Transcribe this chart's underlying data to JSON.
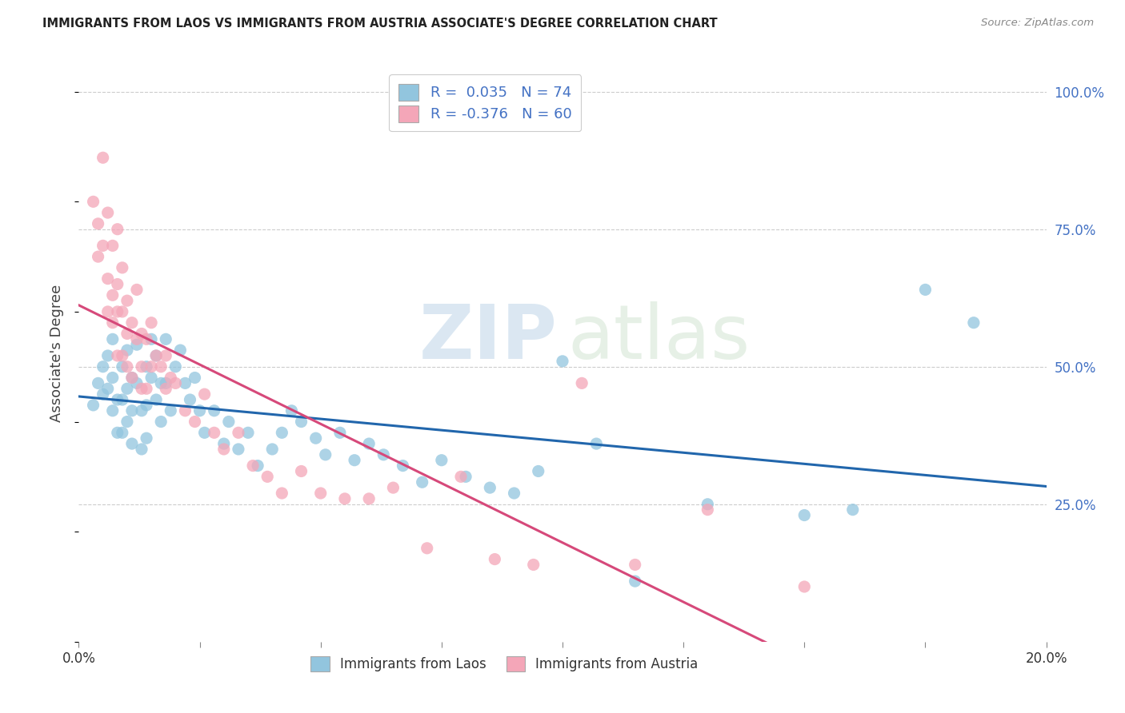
{
  "title": "IMMIGRANTS FROM LAOS VS IMMIGRANTS FROM AUSTRIA ASSOCIATE'S DEGREE CORRELATION CHART",
  "source": "Source: ZipAtlas.com",
  "ylabel": "Associate's Degree",
  "right_yticks": [
    "100.0%",
    "75.0%",
    "50.0%",
    "25.0%"
  ],
  "right_ytick_vals": [
    1.0,
    0.75,
    0.5,
    0.25
  ],
  "legend_laos_r": "0.035",
  "legend_laos_n": "74",
  "legend_austria_r": "-0.376",
  "legend_austria_n": "60",
  "color_laos": "#92c5de",
  "color_austria": "#f4a6b8",
  "color_laos_line": "#2166ac",
  "color_austria_line": "#d6497a",
  "background_color": "#ffffff",
  "xlim": [
    0.0,
    0.2
  ],
  "ylim": [
    0.0,
    1.05
  ],
  "grid_color": "#cccccc",
  "laos_x": [
    0.003,
    0.004,
    0.005,
    0.005,
    0.006,
    0.006,
    0.007,
    0.007,
    0.007,
    0.008,
    0.008,
    0.009,
    0.009,
    0.009,
    0.01,
    0.01,
    0.01,
    0.011,
    0.011,
    0.011,
    0.012,
    0.012,
    0.013,
    0.013,
    0.014,
    0.014,
    0.014,
    0.015,
    0.015,
    0.016,
    0.016,
    0.017,
    0.017,
    0.018,
    0.018,
    0.019,
    0.02,
    0.021,
    0.022,
    0.023,
    0.024,
    0.025,
    0.026,
    0.028,
    0.03,
    0.031,
    0.033,
    0.035,
    0.037,
    0.04,
    0.042,
    0.044,
    0.046,
    0.049,
    0.051,
    0.054,
    0.057,
    0.06,
    0.063,
    0.067,
    0.071,
    0.075,
    0.08,
    0.085,
    0.09,
    0.095,
    0.1,
    0.107,
    0.115,
    0.13,
    0.15,
    0.16,
    0.175,
    0.185
  ],
  "laos_y": [
    0.43,
    0.47,
    0.5,
    0.45,
    0.52,
    0.46,
    0.48,
    0.42,
    0.55,
    0.44,
    0.38,
    0.5,
    0.44,
    0.38,
    0.53,
    0.46,
    0.4,
    0.48,
    0.42,
    0.36,
    0.54,
    0.47,
    0.42,
    0.35,
    0.5,
    0.43,
    0.37,
    0.55,
    0.48,
    0.52,
    0.44,
    0.47,
    0.4,
    0.55,
    0.47,
    0.42,
    0.5,
    0.53,
    0.47,
    0.44,
    0.48,
    0.42,
    0.38,
    0.42,
    0.36,
    0.4,
    0.35,
    0.38,
    0.32,
    0.35,
    0.38,
    0.42,
    0.4,
    0.37,
    0.34,
    0.38,
    0.33,
    0.36,
    0.34,
    0.32,
    0.29,
    0.33,
    0.3,
    0.28,
    0.27,
    0.31,
    0.51,
    0.36,
    0.11,
    0.25,
    0.23,
    0.24,
    0.64,
    0.58
  ],
  "austria_x": [
    0.003,
    0.004,
    0.004,
    0.005,
    0.005,
    0.006,
    0.006,
    0.006,
    0.007,
    0.007,
    0.007,
    0.008,
    0.008,
    0.008,
    0.008,
    0.009,
    0.009,
    0.009,
    0.01,
    0.01,
    0.01,
    0.011,
    0.011,
    0.012,
    0.012,
    0.013,
    0.013,
    0.013,
    0.014,
    0.014,
    0.015,
    0.015,
    0.016,
    0.017,
    0.018,
    0.018,
    0.019,
    0.02,
    0.022,
    0.024,
    0.026,
    0.028,
    0.03,
    0.033,
    0.036,
    0.039,
    0.042,
    0.046,
    0.05,
    0.055,
    0.06,
    0.065,
    0.072,
    0.079,
    0.086,
    0.094,
    0.104,
    0.115,
    0.13,
    0.15
  ],
  "austria_y": [
    0.8,
    0.7,
    0.76,
    0.72,
    0.88,
    0.78,
    0.66,
    0.6,
    0.72,
    0.63,
    0.58,
    0.75,
    0.65,
    0.6,
    0.52,
    0.68,
    0.6,
    0.52,
    0.62,
    0.56,
    0.5,
    0.58,
    0.48,
    0.64,
    0.55,
    0.56,
    0.5,
    0.46,
    0.55,
    0.46,
    0.58,
    0.5,
    0.52,
    0.5,
    0.52,
    0.46,
    0.48,
    0.47,
    0.42,
    0.4,
    0.45,
    0.38,
    0.35,
    0.38,
    0.32,
    0.3,
    0.27,
    0.31,
    0.27,
    0.26,
    0.26,
    0.28,
    0.17,
    0.3,
    0.15,
    0.14,
    0.47,
    0.14,
    0.24,
    0.1
  ]
}
